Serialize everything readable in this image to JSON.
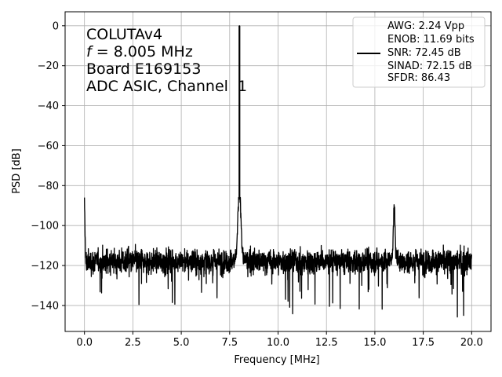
{
  "chart_data": {
    "type": "line",
    "xlabel": "Frequency [MHz]",
    "ylabel": "PSD [dB]",
    "xlim": [
      -1.0,
      21.0
    ],
    "ylim": [
      -153,
      7
    ],
    "xticks": [
      0.0,
      2.5,
      5.0,
      7.5,
      10.0,
      12.5,
      15.0,
      17.5,
      20.0
    ],
    "xtick_labels": [
      "0.0",
      "2.5",
      "5.0",
      "7.5",
      "10.0",
      "12.5",
      "15.0",
      "17.5",
      "20.0"
    ],
    "yticks": [
      0,
      -20,
      -40,
      -60,
      -80,
      -100,
      -120,
      -140
    ],
    "ytick_labels": [
      "0",
      "−20",
      "−40",
      "−60",
      "−80",
      "−100",
      "−120",
      "−140"
    ],
    "grid": true,
    "line_color": "#000000",
    "annotation": {
      "line1": "COLUTAv4",
      "line2_italic": "f",
      "line2_rest": " = 8.005 MHz",
      "line3": "Board E169153",
      "line4": "ADC ASIC, Channel  1"
    },
    "legend": {
      "placement": "top-right",
      "lines": [
        "AWG: 2.24 Vpp",
        "ENOB: 11.69 bits",
        "SNR: 72.45 dB",
        "SINAD: 72.15 dB",
        "SFDR: 86.43"
      ]
    },
    "series": [
      {
        "noise_floor_db": -118,
        "features": [
          {
            "type": "dc_spike",
            "x": 0.0,
            "y": -86.5
          },
          {
            "type": "fundamental",
            "x": 8.005,
            "y": 0
          },
          {
            "type": "skirt",
            "x": 8.005,
            "y": -87
          },
          {
            "type": "harmonic_bump",
            "x": 16.0,
            "y": -90
          }
        ]
      }
    ]
  }
}
